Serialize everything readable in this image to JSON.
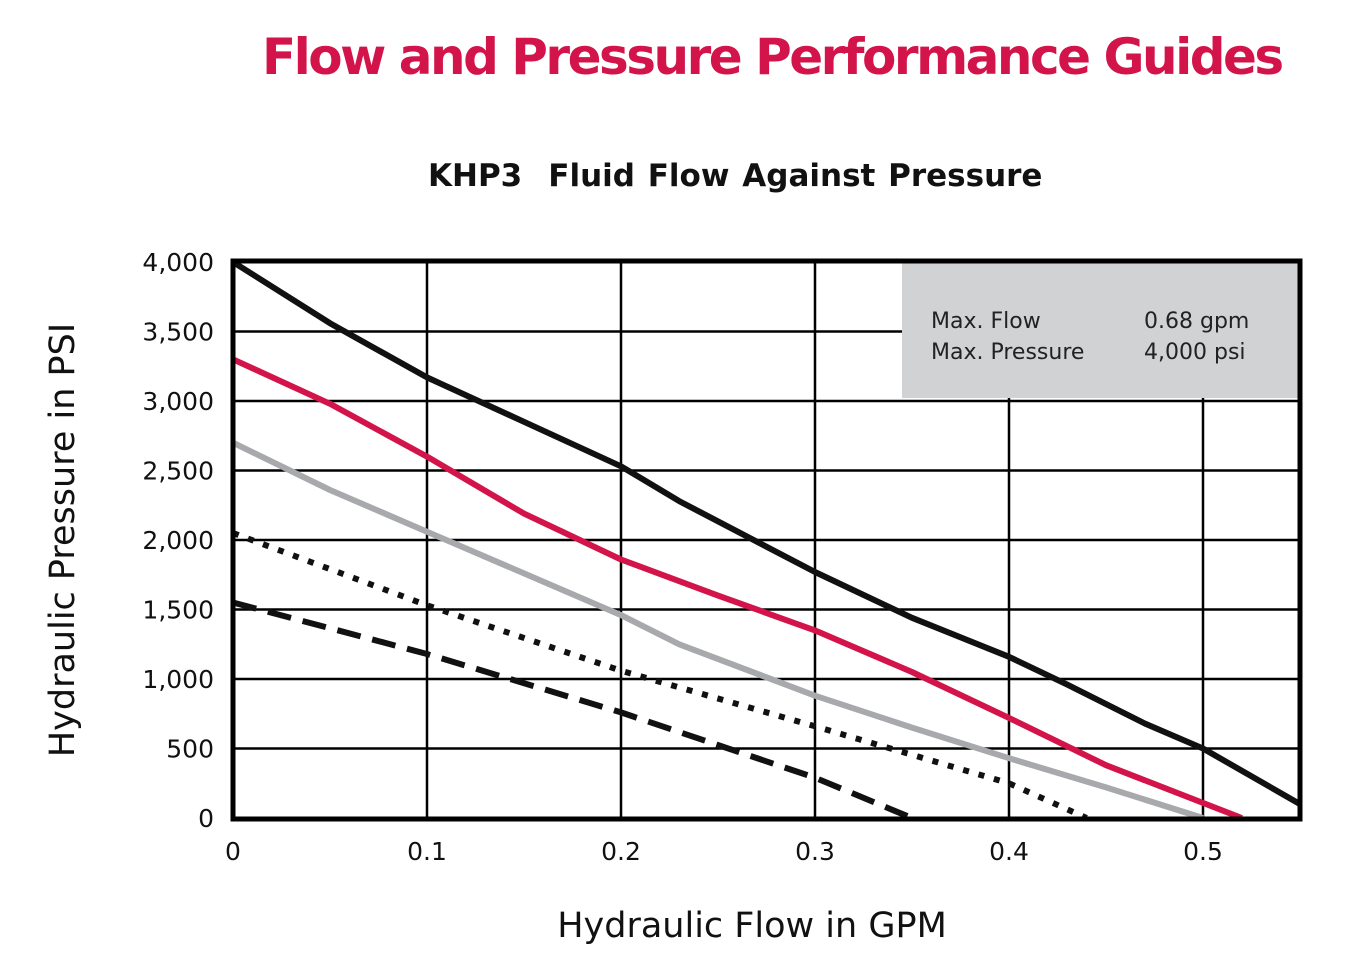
{
  "page_title": "Flow and Pressure Performance Guides",
  "chart_data": {
    "type": "line",
    "title_model": "KHP3",
    "title": "Fluid Flow Against Pressure",
    "xlabel": "Hydraulic Flow in GPM",
    "ylabel": "Hydraulic Pressure in PSI",
    "xlim": [
      0,
      0.55
    ],
    "ylim": [
      0,
      4000
    ],
    "x_ticks": [
      "0",
      "0.1",
      "0.2",
      "0.3",
      "0.4",
      "0.5"
    ],
    "y_ticks": [
      "0",
      "500",
      "1,000",
      "1,500",
      "2,000",
      "2,500",
      "3,000",
      "3,500",
      "4,000"
    ],
    "grid": true,
    "info_box": {
      "rows": [
        {
          "label": "Max. Flow",
          "value": "0.68 gpm"
        },
        {
          "label": "Max. Pressure",
          "value": "4,000 psi"
        }
      ]
    },
    "series": [
      {
        "color": "#111111",
        "style": "solid",
        "x": [
          0,
          0.05,
          0.1,
          0.15,
          0.2,
          0.23,
          0.3,
          0.35,
          0.4,
          0.43,
          0.47,
          0.5,
          0.55
        ],
        "y": [
          4000,
          3560,
          3170,
          2850,
          2530,
          2280,
          1770,
          1440,
          1160,
          960,
          680,
          500,
          100
        ]
      },
      {
        "color": "#d2144a",
        "style": "solid",
        "x": [
          0,
          0.05,
          0.1,
          0.15,
          0.2,
          0.25,
          0.3,
          0.35,
          0.4,
          0.45,
          0.52
        ],
        "y": [
          3300,
          2980,
          2600,
          2190,
          1860,
          1600,
          1350,
          1050,
          720,
          380,
          0
        ]
      },
      {
        "color": "#a8a9ad",
        "style": "solid",
        "x": [
          0,
          0.05,
          0.1,
          0.15,
          0.2,
          0.23,
          0.3,
          0.35,
          0.4,
          0.45,
          0.5
        ],
        "y": [
          2700,
          2360,
          2060,
          1760,
          1460,
          1250,
          880,
          650,
          430,
          220,
          0
        ]
      },
      {
        "color": "#111111",
        "style": "dotted",
        "x": [
          0,
          0.1,
          0.2,
          0.3,
          0.4,
          0.44
        ],
        "y": [
          2050,
          1530,
          1060,
          660,
          250,
          0
        ]
      },
      {
        "color": "#111111",
        "style": "dashed",
        "x": [
          0,
          0.1,
          0.2,
          0.3,
          0.35
        ],
        "y": [
          1550,
          1180,
          760,
          290,
          0
        ]
      }
    ]
  }
}
